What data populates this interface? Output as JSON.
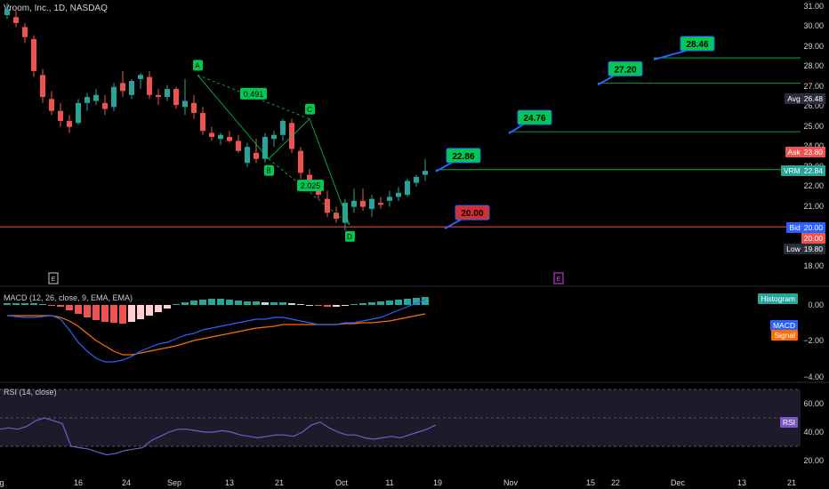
{
  "header": {
    "title": "Vroom, Inc., 1D, NASDAQ"
  },
  "price_axis": {
    "labels": [
      "31.00",
      "30.00",
      "29.00",
      "28.00",
      "27.00",
      "26.00",
      "25.00",
      "24.00",
      "23.00",
      "22.00",
      "21.00",
      "20.00",
      "19.00",
      "18.00"
    ]
  },
  "price_tags": {
    "avg": {
      "label": "Avg",
      "value": "26.48"
    },
    "ask": {
      "label": "Ask",
      "value": "23.80"
    },
    "vrm": {
      "label": "VRM",
      "value": "22.84"
    },
    "bid": {
      "label": "Bid",
      "value": "20.00"
    },
    "bid2": {
      "value": "20.00"
    },
    "low": {
      "label": "Low",
      "value": "19.80"
    }
  },
  "targets": [
    "20.00",
    "22.86",
    "24.76",
    "27.20",
    "28.46"
  ],
  "pattern": {
    "points": [
      "A",
      "B",
      "C",
      "D"
    ],
    "ratios": [
      "0.491",
      "2.025"
    ]
  },
  "events": [
    "E",
    "E"
  ],
  "macd": {
    "label": "MACD (12, 26, close, 9, EMA, EMA)",
    "axis": [
      "0.00",
      "−2.00",
      "−4.00"
    ],
    "tags": {
      "histogram": "Histogram",
      "macd": "MACD",
      "signal": "Signal"
    }
  },
  "rsi": {
    "label": "RSI (14, close)",
    "axis": [
      "60.00",
      "40.00",
      "20.00"
    ],
    "tag": "RSI"
  },
  "time_axis": [
    "g",
    "16",
    "24",
    "Sep",
    "13",
    "21",
    "Oct",
    "11",
    "19",
    "Nov",
    "15",
    "22",
    "Dec",
    "13",
    "21"
  ],
  "colors": {
    "up": "#26a69a",
    "down": "#ef5350",
    "macd": "#2962ff",
    "signal": "#ff6d00",
    "rsi": "#7e57c2",
    "target": "#00c853"
  }
}
